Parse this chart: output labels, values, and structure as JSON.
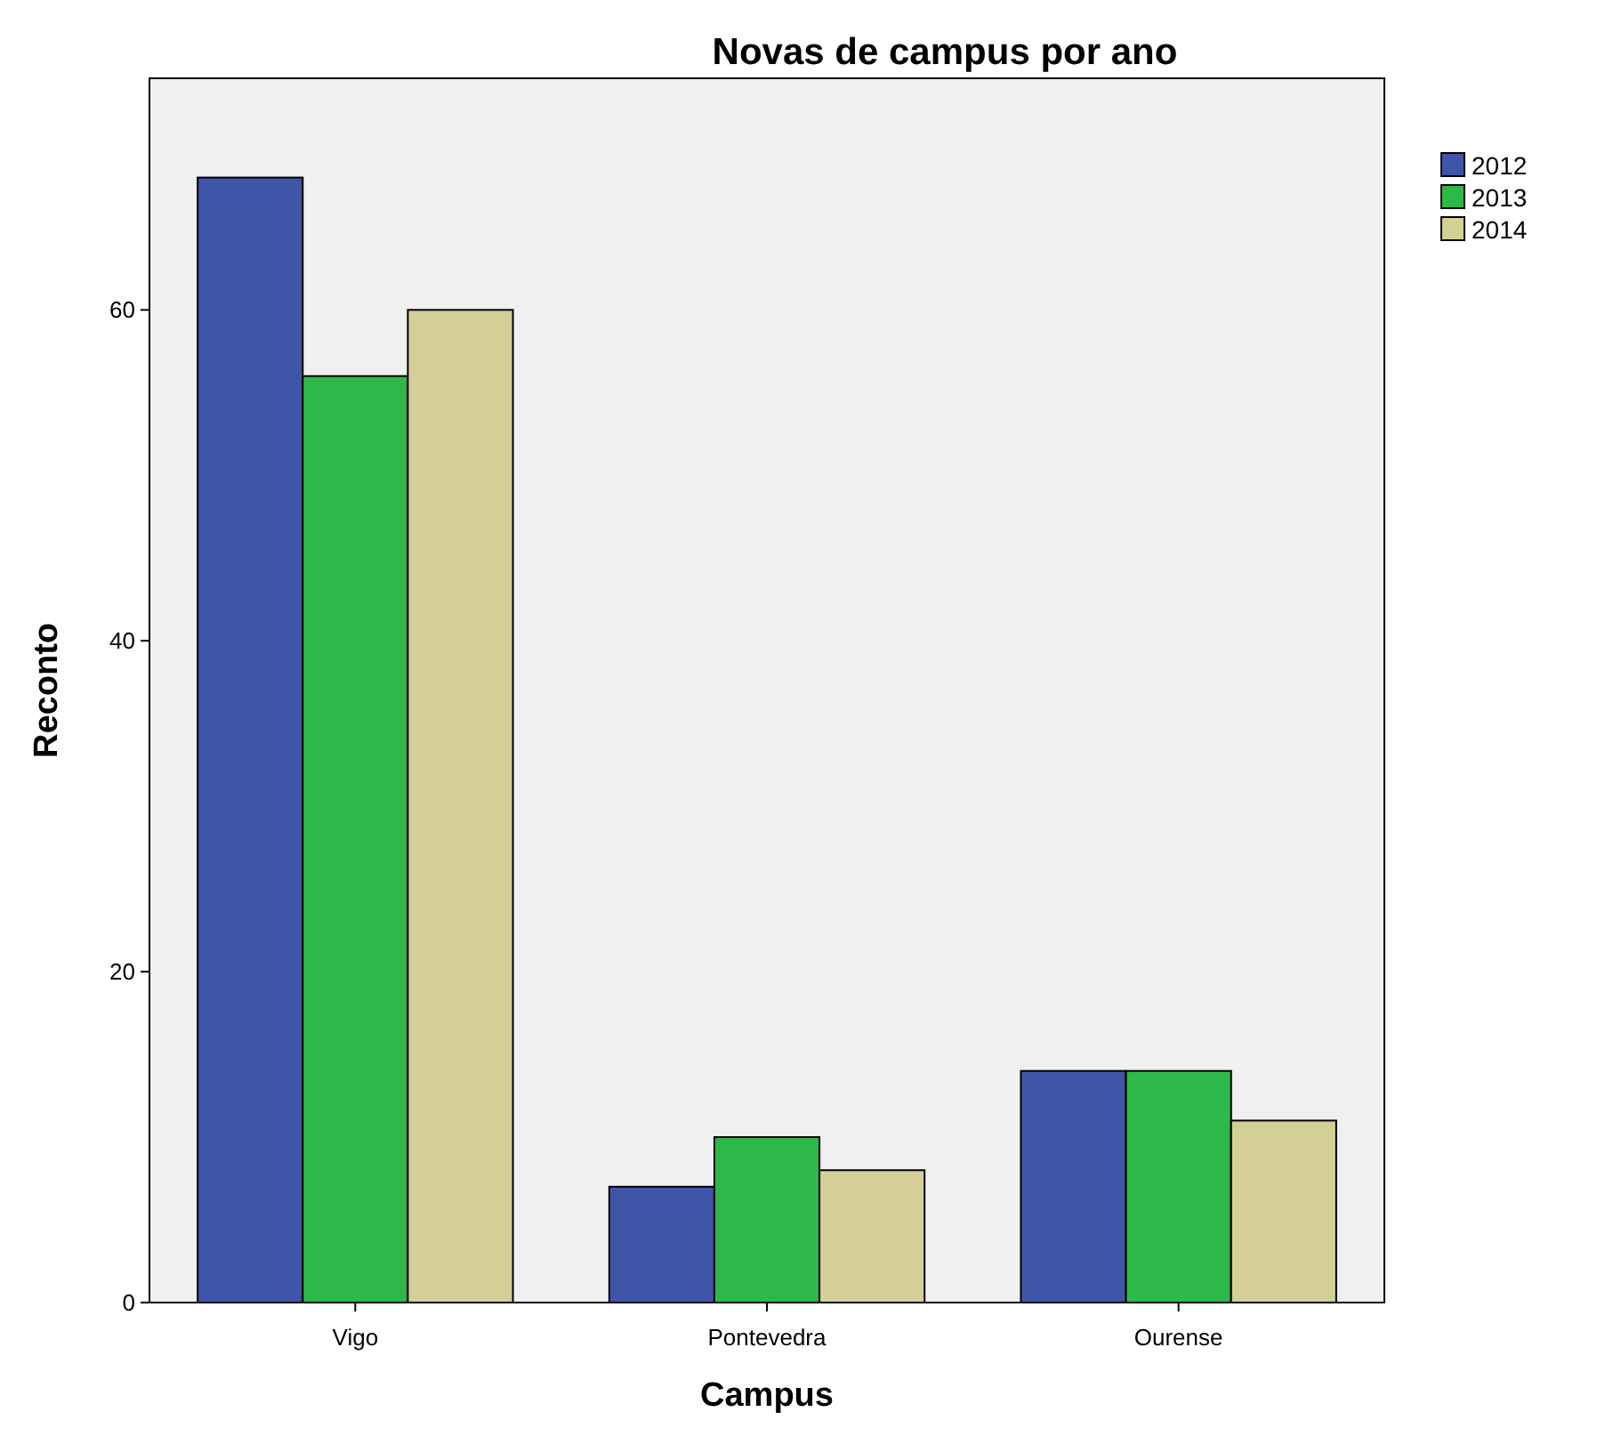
{
  "chart_data": {
    "type": "bar",
    "title": "Novas de campus por ano",
    "xlabel": "Campus",
    "ylabel": "Reconto",
    "categories": [
      "Vigo",
      "Pontevedra",
      "Ourense"
    ],
    "series": [
      {
        "name": "2012",
        "color": "#3f56a8",
        "values": [
          68,
          7,
          14
        ]
      },
      {
        "name": "2013",
        "color": "#2fb84a",
        "values": [
          56,
          10,
          14
        ]
      },
      {
        "name": "2014",
        "color": "#d4cf96",
        "values": [
          60,
          8,
          11
        ]
      }
    ],
    "ylim": [
      0,
      74
    ],
    "yticks": [
      0,
      20,
      40,
      60
    ],
    "grid": false,
    "legend": "top right"
  }
}
